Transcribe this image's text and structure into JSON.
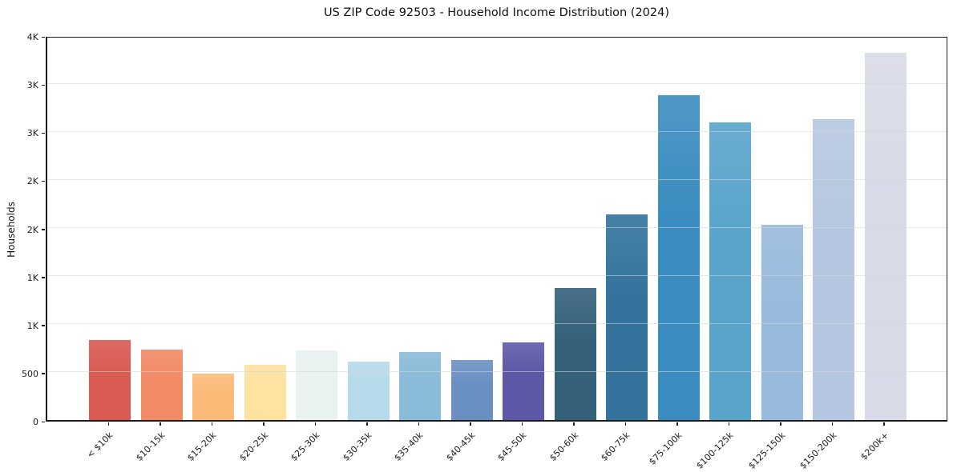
{
  "chart_data": {
    "type": "bar",
    "title": "US ZIP Code 92503 - Household Income Distribution (2024)",
    "xlabel": "",
    "ylabel": "Households",
    "categories": [
      "< $10k",
      "$10-15k",
      "$15-20k",
      "$20-25k",
      "$25-30k",
      "$30-35k",
      "$35-40k",
      "$40-45k",
      "$45-50k",
      "$50-60k",
      "$60-75k",
      "$75-100k",
      "$100-125k",
      "$125-150k",
      "$150-200k",
      "$200k+"
    ],
    "values": [
      830,
      730,
      480,
      575,
      725,
      610,
      710,
      625,
      805,
      1370,
      2140,
      3380,
      3090,
      2030,
      3125,
      3815
    ],
    "bar_colors": [
      "#d95b52",
      "#f28a66",
      "#fbba78",
      "#fde2a0",
      "#e8f2f1",
      "#b6daea",
      "#8abbd9",
      "#6a90c3",
      "#5d59a8",
      "#35617b",
      "#33739c",
      "#3a8cc1",
      "#58a4cb",
      "#98badc",
      "#b5c7e0",
      "#d8dae7"
    ],
    "ylim": [
      0,
      4000
    ],
    "ytick_values": [
      0,
      500,
      1000,
      1500,
      2000,
      2500,
      3000,
      3500,
      4000
    ],
    "ytick_labels": [
      "0",
      "500",
      "1K",
      "1K",
      "2K",
      "2K",
      "3K",
      "3K",
      "4K"
    ],
    "grid": "horizontal",
    "legend": "none",
    "background": "#ffffff",
    "frame_color": "#1c1c1c",
    "gridline_color": "#e9e9e9"
  }
}
